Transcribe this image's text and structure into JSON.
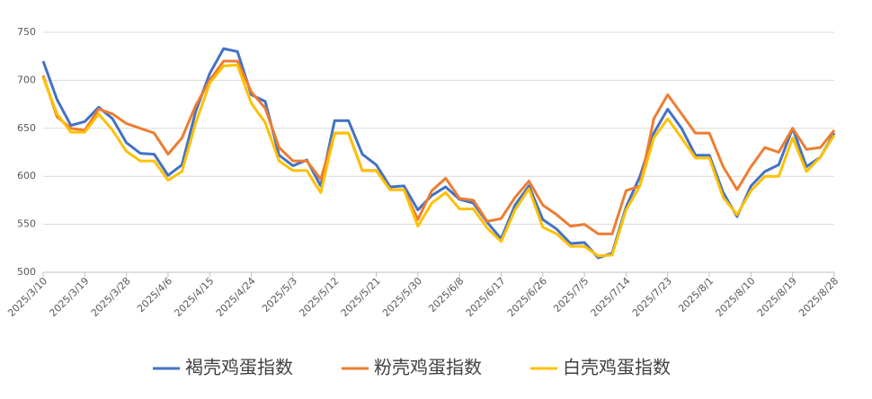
{
  "chart_data": {
    "type": "line",
    "categories": [
      "2025/3/10",
      null,
      null,
      "2025/3/19",
      null,
      null,
      "2025/3/28",
      null,
      null,
      "2025/4/6",
      null,
      null,
      "2025/4/15",
      null,
      null,
      "2025/4/24",
      null,
      null,
      "2025/5/3",
      null,
      null,
      "2025/5/12",
      null,
      null,
      "2025/5/21",
      null,
      null,
      "2025/5/30",
      null,
      null,
      "2025/6/8",
      null,
      null,
      "2025/6/17",
      null,
      null,
      "2025/6/26",
      null,
      null,
      "2025/7/5",
      null,
      null,
      "2025/7/14",
      null,
      null,
      "2025/7/23",
      null,
      null,
      "2025/8/1",
      null,
      null,
      "2025/8/10",
      null,
      null,
      "2025/8/19",
      null,
      null,
      "2025/8/28"
    ],
    "series": [
      {
        "name": "褐壳鸡蛋指数",
        "color": "#4472c4",
        "values": [
          720,
          680,
          653,
          657,
          672,
          660,
          635,
          624,
          623,
          601,
          612,
          668,
          707,
          733,
          730,
          685,
          678,
          622,
          611,
          617,
          590,
          658,
          658,
          623,
          612,
          589,
          590,
          565,
          580,
          589,
          576,
          572,
          552,
          535,
          570,
          590,
          555,
          545,
          530,
          531,
          515,
          520,
          568,
          600,
          645,
          670,
          650,
          622,
          622,
          583,
          558,
          590,
          605,
          612,
          650,
          610,
          620,
          645
        ]
      },
      {
        "name": "粉壳鸡蛋指数",
        "color": "#ed7d31",
        "values": [
          705,
          662,
          650,
          648,
          670,
          665,
          655,
          650,
          645,
          623,
          640,
          674,
          700,
          720,
          720,
          688,
          671,
          630,
          616,
          616,
          597,
          645,
          645,
          606,
          606,
          586,
          586,
          555,
          585,
          598,
          577,
          575,
          553,
          556,
          578,
          595,
          570,
          560,
          548,
          550,
          540,
          540,
          585,
          590,
          660,
          685,
          665,
          645,
          645,
          610,
          586,
          610,
          630,
          625,
          650,
          628,
          630,
          648
        ]
      },
      {
        "name": "白壳鸡蛋指数",
        "color": "#ffc000",
        "values": [
          703,
          665,
          646,
          646,
          665,
          648,
          626,
          616,
          616,
          596,
          605,
          656,
          697,
          715,
          716,
          676,
          656,
          616,
          606,
          606,
          583,
          645,
          645,
          606,
          606,
          586,
          586,
          548,
          572,
          583,
          566,
          566,
          546,
          532,
          565,
          587,
          547,
          540,
          527,
          527,
          517,
          518,
          565,
          590,
          640,
          660,
          640,
          619,
          619,
          578,
          560,
          585,
          600,
          600,
          640,
          605,
          620,
          643
        ]
      }
    ],
    "ylim": [
      500,
      750
    ],
    "yticks": [
      500,
      550,
      600,
      650,
      700,
      750
    ],
    "grid": true,
    "legend": "bottom"
  }
}
